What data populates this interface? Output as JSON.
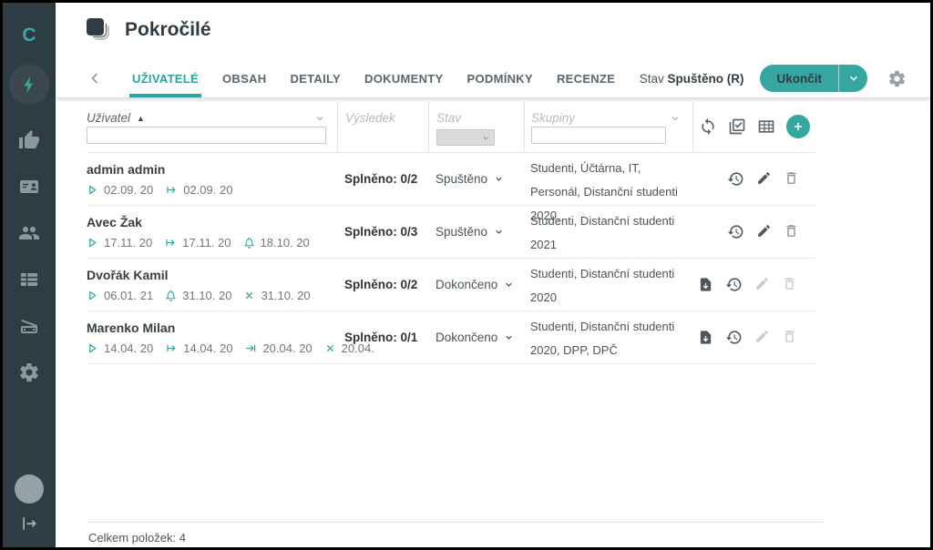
{
  "colors": {
    "accent": "#35a7a0",
    "sidebar_bg": "#2e3c43",
    "dark_text": "#2e3c43"
  },
  "sidebar": {
    "logo": "C"
  },
  "header": {
    "title": "Pokročilé",
    "tabs": [
      {
        "label": "UŽIVATELÉ",
        "active": true
      },
      {
        "label": "OBSAH",
        "active": false
      },
      {
        "label": "DETAILY",
        "active": false
      },
      {
        "label": "DOKUMENTY",
        "active": false
      },
      {
        "label": "PODMÍNKY",
        "active": false
      },
      {
        "label": "RECENZE",
        "active": false
      }
    ],
    "state_label": "Stav",
    "state_value": "Spuštěno (R)",
    "end_button_label": "Ukončit"
  },
  "filters": {
    "user_label": "Uživatel",
    "result_label": "Výsledek",
    "status_label": "Stav",
    "groups_label": "Skupiny",
    "user_filter_value": "",
    "groups_filter_value": ""
  },
  "rows": [
    {
      "name": "admin admin",
      "dates": [
        {
          "icon": "play",
          "text": "02.09. 20"
        },
        {
          "icon": "from-bar",
          "text": "02.09. 20"
        }
      ],
      "result": "Splněno: 0/2",
      "status": "Spuštěno",
      "groups": "Studenti, Účtárna, IT, Personál, Distanční studenti 2020,",
      "has_export": false,
      "can_edit": true
    },
    {
      "name": "Avec Žak",
      "dates": [
        {
          "icon": "play",
          "text": "17.11. 20"
        },
        {
          "icon": "from-bar",
          "text": "17.11. 20"
        },
        {
          "icon": "bell",
          "text": "18.10. 20"
        }
      ],
      "result": "Splněno: 0/3",
      "status": "Spuštěno",
      "groups": "Studenti, Distanční studenti 2021",
      "has_export": false,
      "can_edit": true
    },
    {
      "name": "Dvořák Kamil",
      "dates": [
        {
          "icon": "play",
          "text": "06.01. 21"
        },
        {
          "icon": "bell",
          "text": "31.10. 20"
        },
        {
          "icon": "cross",
          "text": "31.10. 20"
        }
      ],
      "result": "Splněno: 0/2",
      "status": "Dokončeno",
      "groups": "Studenti, Distanční studenti 2020",
      "has_export": true,
      "can_edit": false
    },
    {
      "name": "Marenko Milan",
      "dates": [
        {
          "icon": "play",
          "text": "14.04. 20"
        },
        {
          "icon": "from-bar",
          "text": "14.04. 20"
        },
        {
          "icon": "to-bar",
          "text": "20.04. 20"
        },
        {
          "icon": "cross",
          "text": "20.04."
        }
      ],
      "result": "Splněno: 0/1",
      "status": "Dokončeno",
      "groups": "Studenti, Distanční studenti 2020, DPP, DPČ",
      "has_export": true,
      "can_edit": false
    }
  ],
  "footer": {
    "total": "Celkem položek: 4"
  }
}
